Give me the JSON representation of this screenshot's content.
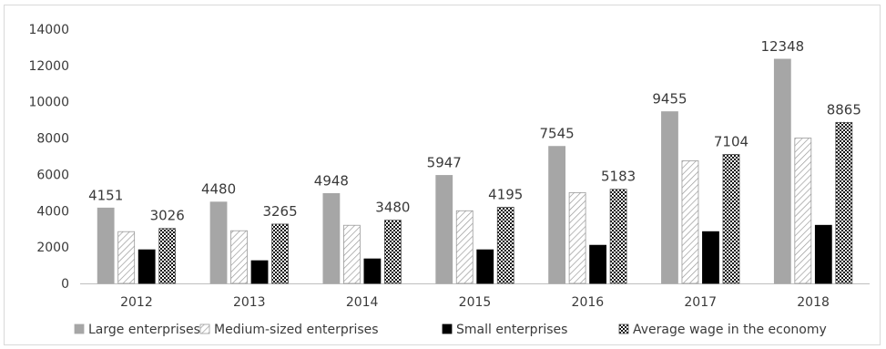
{
  "chart_data": {
    "type": "bar",
    "categories": [
      "2012",
      "2013",
      "2014",
      "2015",
      "2016",
      "2017",
      "2018"
    ],
    "series": [
      {
        "name": "Large enterprises",
        "values": [
          4151,
          4480,
          4948,
          5947,
          7545,
          9455,
          12348
        ],
        "labeled": true
      },
      {
        "name": "Medium-sized enterprises",
        "values": [
          2850,
          2900,
          3200,
          4000,
          5000,
          6750,
          8000
        ],
        "labeled": false
      },
      {
        "name": "Small enterprises",
        "values": [
          1850,
          1250,
          1350,
          1850,
          2100,
          2850,
          3200
        ],
        "labeled": false
      },
      {
        "name": "Average wage in the economy",
        "values": [
          3026,
          3265,
          3480,
          4195,
          5183,
          7104,
          8865
        ],
        "labeled": true
      }
    ],
    "data_labels": {
      "Large enterprises": [
        "4151",
        "4480",
        "4948",
        "5947",
        "7545",
        "9455",
        "12348"
      ],
      "Average wage in the economy": [
        "3026",
        "3265",
        "3480",
        "4195",
        "5183",
        "7104",
        "8865"
      ]
    },
    "yticks": [
      "0",
      "2000",
      "4000",
      "6000",
      "8000",
      "10000",
      "12000",
      "14000"
    ],
    "ylim": [
      0,
      14000
    ],
    "grid": false,
    "legend_position": "bottom",
    "colors": {
      "Large enterprises": "#a6a6a6",
      "Medium-sized enterprises": "#ffffff",
      "Small enterprises": "#000000",
      "Average wage in the economy": "#ffffff"
    }
  }
}
